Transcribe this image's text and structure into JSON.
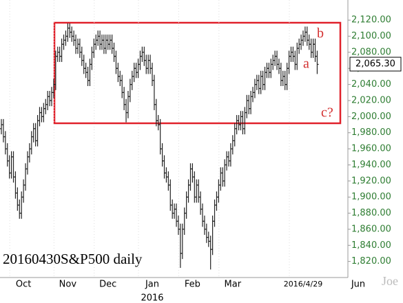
{
  "chart_data": {
    "type": "ohlc",
    "title": "20160430S&P500 daily",
    "categories": [
      null,
      null,
      null,
      null,
      null,
      null,
      null,
      null,
      null,
      null,
      null,
      "Oct",
      null,
      null,
      null,
      null,
      null,
      null,
      null,
      null,
      null,
      null,
      null,
      null,
      null,
      null,
      null,
      null,
      null,
      null,
      null,
      null,
      null,
      "Nov",
      null,
      null,
      null,
      null,
      null,
      null,
      null,
      null,
      null,
      null,
      null,
      null,
      null,
      null,
      null,
      null,
      null,
      null,
      null,
      "Dec",
      null,
      null,
      null,
      null,
      null,
      null,
      null,
      null,
      null,
      null,
      null,
      null,
      null,
      null,
      null,
      null,
      null,
      null,
      null,
      null,
      null,
      "Jan",
      null,
      null,
      null,
      null,
      null,
      null,
      null,
      null,
      null,
      null,
      null,
      null,
      null,
      null,
      null,
      null,
      null,
      null,
      null,
      "Feb",
      null,
      null,
      null,
      null,
      null,
      null,
      null,
      null,
      null,
      null,
      null,
      null,
      null,
      null,
      null,
      null,
      null,
      null,
      null,
      "Mar",
      null,
      null,
      null,
      null,
      null,
      null,
      null,
      null,
      null,
      null,
      null,
      null,
      null,
      null,
      null,
      null,
      null,
      null,
      null,
      null,
      null,
      null,
      null,
      null,
      null,
      null,
      null,
      null,
      null,
      null,
      null,
      null,
      null,
      null,
      "2016/4/29",
      null,
      null,
      null,
      null,
      null,
      null,
      null
    ],
    "open": [
      1985,
      1990,
      1975,
      1960,
      1945,
      1930,
      1950,
      1925,
      1905,
      1890,
      1880,
      1900,
      1915,
      1935,
      1950,
      1960,
      1975,
      1985,
      1970,
      1995,
      2005,
      2000,
      2010,
      2015,
      2025,
      2020,
      2030,
      2040,
      2075,
      2080,
      2075,
      2090,
      2095,
      2100,
      2110,
      2105,
      2100,
      2095,
      2085,
      2090,
      2080,
      2070,
      2060,
      2055,
      2045,
      2065,
      2080,
      2090,
      2095,
      2100,
      2090,
      2095,
      2085,
      2095,
      2090,
      2095,
      2085,
      2075,
      2060,
      2050,
      2045,
      2030,
      2015,
      2005,
      2025,
      2040,
      2050,
      2060,
      2055,
      2065,
      2075,
      2080,
      2070,
      2060,
      2070,
      2060,
      2045,
      2015,
      1995,
      1990,
      1960,
      1945,
      1930,
      1925,
      1915,
      1890,
      1880,
      1885,
      1870,
      1860,
      1830,
      1860,
      1880,
      1900,
      1915,
      1935,
      1925,
      1900,
      1915,
      1900,
      1885,
      1870,
      1860,
      1850,
      1845,
      1835,
      1870,
      1890,
      1900,
      1915,
      1930,
      1920,
      1940,
      1950,
      1945,
      1960,
      1970,
      1985,
      1995,
      1990,
      2000,
      1985,
      2005,
      2020,
      2010,
      2025,
      2030,
      2040,
      2045,
      2035,
      2050,
      2040,
      2055,
      2060,
      2055,
      2065,
      2070,
      2075,
      2065,
      2060,
      2045,
      2050,
      2040,
      2060,
      2075,
      2080,
      2075,
      2065,
      2085,
      2090,
      2095,
      2100,
      2105,
      2095,
      2090,
      2080,
      2090,
      2075
    ],
    "high": [
      1997,
      1997,
      1982,
      1967,
      1952,
      1957,
      1957,
      1932,
      1912,
      1897,
      1907,
      1922,
      1942,
      1957,
      1967,
      1982,
      1992,
      1992,
      2002,
      2012,
      2012,
      2017,
      2022,
      2032,
      2032,
      2037,
      2047,
      2082,
      2087,
      2087,
      2097,
      2102,
      2107,
      2116,
      2116,
      2112,
      2107,
      2102,
      2097,
      2097,
      2087,
      2077,
      2067,
      2062,
      2072,
      2087,
      2097,
      2102,
      2107,
      2107,
      2102,
      2102,
      2102,
      2102,
      2102,
      2102,
      2092,
      2082,
      2067,
      2057,
      2052,
      2037,
      2022,
      2032,
      2047,
      2057,
      2067,
      2067,
      2072,
      2082,
      2087,
      2087,
      2077,
      2077,
      2077,
      2067,
      2052,
      2022,
      2002,
      1997,
      1967,
      1952,
      1937,
      1932,
      1922,
      1897,
      1892,
      1892,
      1877,
      1867,
      1867,
      1887,
      1907,
      1922,
      1942,
      1942,
      1932,
      1922,
      1922,
      1907,
      1892,
      1877,
      1867,
      1857,
      1852,
      1877,
      1897,
      1907,
      1922,
      1937,
      1937,
      1947,
      1957,
      1957,
      1967,
      1977,
      1992,
      2002,
      2002,
      2007,
      2007,
      2012,
      2027,
      2027,
      2032,
      2037,
      2047,
      2052,
      2052,
      2057,
      2057,
      2062,
      2067,
      2067,
      2072,
      2077,
      2082,
      2082,
      2072,
      2067,
      2057,
      2057,
      2067,
      2082,
      2087,
      2087,
      2082,
      2092,
      2097,
      2102,
      2107,
      2112,
      2112,
      2102,
      2097,
      2097,
      2097,
      2082
    ],
    "low": [
      1978,
      1968,
      1953,
      1938,
      1923,
      1923,
      1918,
      1898,
      1883,
      1873,
      1873,
      1893,
      1908,
      1928,
      1943,
      1953,
      1968,
      1963,
      1963,
      1988,
      1993,
      1993,
      2003,
      2008,
      2013,
      2013,
      2023,
      2033,
      2068,
      2068,
      2068,
      2083,
      2088,
      2093,
      2098,
      2093,
      2088,
      2078,
      2078,
      2073,
      2063,
      2053,
      2048,
      2038,
      2038,
      2058,
      2073,
      2083,
      2088,
      2083,
      2083,
      2078,
      2078,
      2083,
      2083,
      2078,
      2068,
      2053,
      2043,
      2038,
      2023,
      2008,
      1993,
      1998,
      2018,
      2033,
      2043,
      2048,
      2048,
      2058,
      2068,
      2063,
      2053,
      2053,
      2053,
      2038,
      2008,
      1988,
      1983,
      1953,
      1938,
      1923,
      1918,
      1908,
      1883,
      1873,
      1873,
      1863,
      1853,
      1812,
      1823,
      1853,
      1873,
      1893,
      1908,
      1918,
      1893,
      1893,
      1893,
      1878,
      1863,
      1853,
      1843,
      1838,
      1810,
      1828,
      1863,
      1883,
      1893,
      1908,
      1913,
      1913,
      1933,
      1938,
      1938,
      1953,
      1963,
      1978,
      1983,
      1983,
      1978,
      1978,
      1998,
      2003,
      2003,
      2018,
      2023,
      2033,
      2028,
      2028,
      2033,
      2033,
      2048,
      2048,
      2048,
      2058,
      2063,
      2058,
      2053,
      2038,
      2038,
      2033,
      2033,
      2053,
      2068,
      2068,
      2058,
      2058,
      2078,
      2083,
      2088,
      2093,
      2088,
      2083,
      2073,
      2073,
      2068,
      2053
    ],
    "close": [
      1990,
      1975,
      1960,
      1945,
      1930,
      1950,
      1925,
      1905,
      1890,
      1880,
      1900,
      1915,
      1935,
      1950,
      1960,
      1975,
      1985,
      1970,
      1995,
      2005,
      2000,
      2010,
      2015,
      2025,
      2020,
      2030,
      2040,
      2075,
      2080,
      2075,
      2090,
      2095,
      2100,
      2110,
      2105,
      2100,
      2095,
      2085,
      2090,
      2080,
      2070,
      2060,
      2055,
      2045,
      2065,
      2080,
      2090,
      2095,
      2100,
      2090,
      2095,
      2085,
      2095,
      2090,
      2095,
      2085,
      2075,
      2060,
      2050,
      2045,
      2030,
      2015,
      2005,
      2025,
      2040,
      2050,
      2060,
      2055,
      2065,
      2075,
      2080,
      2070,
      2060,
      2070,
      2060,
      2045,
      2015,
      1995,
      1990,
      1960,
      1945,
      1930,
      1925,
      1915,
      1890,
      1880,
      1885,
      1870,
      1860,
      1830,
      1860,
      1880,
      1900,
      1915,
      1935,
      1925,
      1900,
      1915,
      1900,
      1885,
      1870,
      1860,
      1850,
      1845,
      1835,
      1870,
      1890,
      1900,
      1915,
      1930,
      1920,
      1940,
      1950,
      1945,
      1960,
      1970,
      1985,
      1995,
      1990,
      2000,
      1985,
      2005,
      2020,
      2010,
      2025,
      2030,
      2040,
      2045,
      2035,
      2050,
      2040,
      2055,
      2060,
      2055,
      2065,
      2070,
      2075,
      2065,
      2060,
      2045,
      2050,
      2040,
      2060,
      2075,
      2080,
      2075,
      2065,
      2085,
      2090,
      2095,
      2100,
      2105,
      2095,
      2090,
      2080,
      2090,
      2075,
      2065
    ],
    "color": "#222222",
    "ylim": [
      1800,
      2145
    ],
    "yticks": [
      {
        "value": 1820,
        "label": "1,820.00"
      },
      {
        "value": 1840,
        "label": "1,840.00"
      },
      {
        "value": 1860,
        "label": "1,860.00"
      },
      {
        "value": 1880,
        "label": "1,880.00"
      },
      {
        "value": 1900,
        "label": "1,900.00"
      },
      {
        "value": 1920,
        "label": "1,920.00"
      },
      {
        "value": 1940,
        "label": "1,940.00"
      },
      {
        "value": 1960,
        "label": "1,960.00"
      },
      {
        "value": 1980,
        "label": "1,980.00"
      },
      {
        "value": 2000,
        "label": "2,000.00"
      },
      {
        "value": 2020,
        "label": "2,020.00"
      },
      {
        "value": 2040,
        "label": "2,040.00"
      },
      {
        "value": 2060,
        "label": "2,060.00"
      },
      {
        "value": 2080,
        "label": "2,080.00"
      },
      {
        "value": 2100,
        "label": "2,100.00"
      },
      {
        "value": 2120,
        "label": "2,120.00"
      }
    ],
    "last_price": {
      "value": 2065.3,
      "label": "2,065.30"
    },
    "year_label": "2016",
    "extra_month": "Jun",
    "watermark": "Joe",
    "wave_labels": [
      "a",
      "b",
      "c?"
    ]
  }
}
